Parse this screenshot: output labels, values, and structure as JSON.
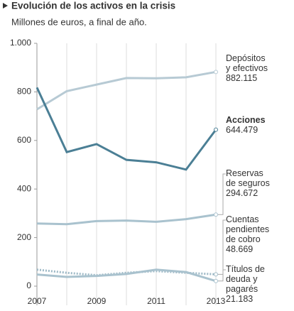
{
  "chart_data": {
    "type": "line",
    "title": "Evolución de los activos en la crisis",
    "subtitle": "Millones de euros, a final de año.",
    "categories": [
      "2007",
      null,
      "2009",
      null,
      "2011",
      null,
      "2013"
    ],
    "ylim": [
      0,
      1000
    ],
    "yticks": [
      0,
      200,
      400,
      600,
      800,
      {
        "value": 1000,
        "label": "1.000"
      }
    ],
    "grid": "x",
    "series": [
      {
        "name": "Depósitos\ny efectivos",
        "color": "#b7cad4",
        "values": [
          728,
          803,
          830,
          857,
          856,
          860,
          882.115
        ],
        "value_labels": [
          null,
          null,
          null,
          null,
          null,
          null,
          "882.115"
        ]
      },
      {
        "name": "Acciones",
        "color": "#4b7f95",
        "values": [
          818,
          552,
          585,
          520,
          510,
          480,
          644.479
        ],
        "value_labels": [
          null,
          null,
          null,
          null,
          null,
          null,
          "644.479"
        ]
      },
      {
        "name": "Reservas\nde seguros",
        "color": "#a9c2ce",
        "values": [
          258,
          255,
          268,
          270,
          265,
          276,
          294.672
        ],
        "value_labels": [
          null,
          null,
          null,
          null,
          null,
          null,
          "294.672"
        ]
      },
      {
        "name": "Cuentas\npendientes\nde cobro",
        "color": "#9fbac7",
        "dashed": true,
        "values": [
          68,
          55,
          45,
          55,
          62,
          55,
          48.669
        ],
        "value_labels": [
          null,
          null,
          null,
          null,
          null,
          null,
          "48.669"
        ]
      },
      {
        "name": "Títulos de\ndeuda y\npagarés",
        "color": "#a9c2ce",
        "values": [
          48,
          38,
          42,
          50,
          68,
          58,
          21.183
        ],
        "value_labels": [
          null,
          null,
          null,
          null,
          null,
          null,
          "21.183"
        ]
      }
    ]
  }
}
